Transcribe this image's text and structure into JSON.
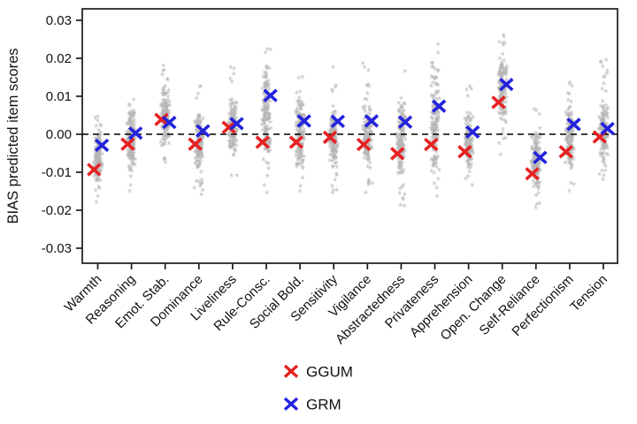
{
  "figure": {
    "background": "#ffffff",
    "axis_color": "#1a1a1a",
    "ylabel": "BIAS predicted item scores"
  },
  "chart_data": {
    "type": "scatter",
    "title": "",
    "xlabel": "",
    "ylabel": "BIAS predicted item scores",
    "ylim": [
      -0.03,
      0.03
    ],
    "yticks": [
      0.03,
      0.02,
      0.01,
      0.0,
      -0.01,
      -0.02,
      -0.03
    ],
    "ytick_labels": [
      "0.03",
      "0.02",
      "0.01",
      "0.00",
      "-0.01",
      "-0.02",
      "-0.03"
    ],
    "grid": false,
    "zero_line": {
      "value": 0,
      "style": "dashed",
      "color": "#000000"
    },
    "legend_position": "bottom-center",
    "categories": [
      "Warmth",
      "Reasoning",
      "Emot. Stab.",
      "Dominance",
      "Liveliness",
      "Rule-Consc.",
      "Social Bold.",
      "Sensitivity",
      "Vigilance",
      "Abstractedness",
      "Privateness",
      "Apprehension",
      "Open. Change",
      "Self-Reliance",
      "Perfectionism",
      "Tension"
    ],
    "series": [
      {
        "name": "GGUM",
        "marker": "x",
        "color": "#e62222",
        "values": [
          -0.0093,
          -0.0026,
          0.0039,
          -0.0026,
          0.0018,
          -0.0021,
          -0.0021,
          -0.0008,
          -0.0027,
          -0.0051,
          -0.0027,
          -0.0046,
          0.0084,
          -0.0104,
          -0.0046,
          -0.0007
        ]
      },
      {
        "name": "GRM",
        "marker": "x",
        "color": "#2323dd",
        "values": [
          -0.0029,
          0.0003,
          0.0031,
          0.0009,
          0.0028,
          0.0102,
          0.0035,
          0.0034,
          0.0035,
          0.0032,
          0.0074,
          0.0006,
          0.0131,
          -0.0061,
          0.0026,
          0.0015
        ]
      }
    ],
    "jitter_clouds": {
      "marker": "*",
      "color": "#b5b5b5",
      "description": "per-category vertical spread of gray item-level bias points",
      "ranges": [
        {
          "min": -0.0185,
          "max": 0.004,
          "dense_min": -0.0135,
          "dense_max": 0.0005
        },
        {
          "min": -0.0155,
          "max": 0.0085,
          "dense_min": -0.01,
          "dense_max": 0.0055
        },
        {
          "min": -0.008,
          "max": 0.0175,
          "dense_min": -0.0035,
          "dense_max": 0.0125
        },
        {
          "min": -0.0165,
          "max": 0.012,
          "dense_min": -0.01,
          "dense_max": 0.006
        },
        {
          "min": -0.0115,
          "max": 0.017,
          "dense_min": -0.007,
          "dense_max": 0.0095
        },
        {
          "min": -0.016,
          "max": 0.0218,
          "dense_min": -0.009,
          "dense_max": 0.019
        },
        {
          "min": -0.0155,
          "max": 0.0145,
          "dense_min": -0.011,
          "dense_max": 0.0095
        },
        {
          "min": -0.016,
          "max": 0.017,
          "dense_min": -0.0105,
          "dense_max": 0.006
        },
        {
          "min": -0.016,
          "max": 0.018,
          "dense_min": -0.01,
          "dense_max": 0.008
        },
        {
          "min": -0.0195,
          "max": 0.016,
          "dense_min": -0.012,
          "dense_max": 0.01
        },
        {
          "min": -0.017,
          "max": 0.023,
          "dense_min": -0.012,
          "dense_max": 0.019
        },
        {
          "min": -0.014,
          "max": 0.012,
          "dense_min": -0.01,
          "dense_max": 0.005
        },
        {
          "min": -0.006,
          "max": 0.0255,
          "dense_min": 0.002,
          "dense_max": 0.021
        },
        {
          "min": -0.02,
          "max": 0.006,
          "dense_min": -0.0155,
          "dense_max": 0.001
        },
        {
          "min": -0.0155,
          "max": 0.013,
          "dense_min": -0.01,
          "dense_max": 0.008
        },
        {
          "min": -0.0125,
          "max": 0.019,
          "dense_min": -0.008,
          "dense_max": 0.008
        }
      ]
    },
    "legend": [
      {
        "label": "GGUM",
        "color": "#e62222",
        "marker": "x"
      },
      {
        "label": "GRM",
        "color": "#2323dd",
        "marker": "x"
      }
    ]
  }
}
